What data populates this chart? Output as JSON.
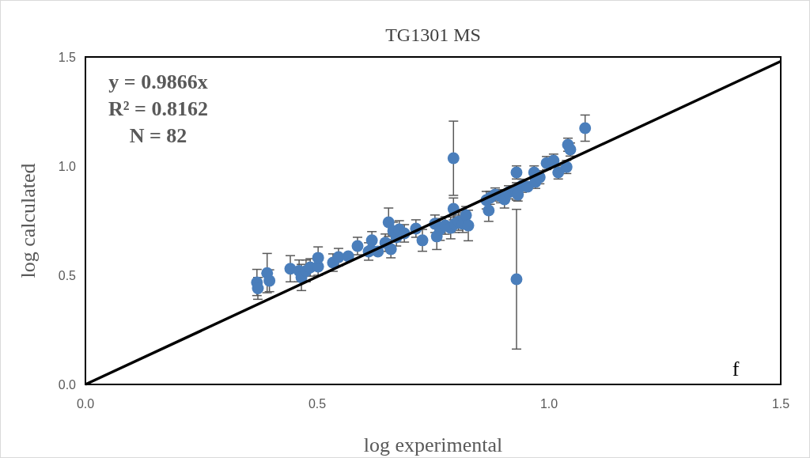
{
  "chart_data": {
    "type": "scatter",
    "title": "TG1301 MS",
    "xlabel": "log experimental",
    "ylabel": "log calculated",
    "annotations": [
      "y = 0.9866x",
      "R² = 0.8162",
      "N = 82",
      "f"
    ],
    "xlim": [
      0,
      1.5
    ],
    "ylim": [
      0,
      1.5
    ],
    "xticks": [
      {
        "value": 0,
        "label": "0.0"
      },
      {
        "value": 0.5,
        "label": "0.5"
      },
      {
        "value": 1,
        "label": "1.0"
      },
      {
        "value": 1.5,
        "label": "1.5"
      }
    ],
    "yticks": [
      {
        "value": 0,
        "label": "0.0"
      },
      {
        "value": 0.5,
        "label": "0.5"
      },
      {
        "value": 1,
        "label": "1.0"
      },
      {
        "value": 1.5,
        "label": "1.5"
      }
    ],
    "grid": false,
    "marker": "circle",
    "series": [
      {
        "color": "#4a7ebb",
        "x": [
          0.37,
          0.372,
          0.392,
          0.397,
          0.442,
          0.461,
          0.466,
          0.476,
          0.485,
          0.502,
          0.502,
          0.534,
          0.546,
          0.567,
          0.587,
          0.611,
          0.616,
          0.618,
          0.631,
          0.647,
          0.654,
          0.659,
          0.664,
          0.671,
          0.677,
          0.688,
          0.713,
          0.727,
          0.754,
          0.758,
          0.765,
          0.776,
          0.788,
          0.794,
          0.794,
          0.797,
          0.805,
          0.814,
          0.821,
          0.826,
          0.865,
          0.87,
          0.873,
          0.884,
          0.896,
          0.904,
          0.913,
          0.93,
          0.93,
          0.93,
          0.933,
          0.942,
          0.954,
          0.968,
          0.971,
          0.98,
          0.995,
          1.01,
          1.02,
          1.038,
          1.041,
          1.046,
          1.078
        ],
        "values": [
          0.467,
          0.44,
          0.51,
          0.475,
          0.53,
          0.52,
          0.49,
          0.52,
          0.536,
          0.54,
          0.58,
          0.558,
          0.583,
          0.587,
          0.634,
          0.609,
          0.616,
          0.66,
          0.609,
          0.649,
          0.743,
          0.62,
          0.703,
          0.674,
          0.71,
          0.692,
          0.714,
          0.66,
          0.736,
          0.678,
          0.71,
          0.728,
          0.717,
          1.036,
          0.804,
          0.736,
          0.746,
          0.736,
          0.775,
          0.728,
          0.844,
          0.797,
          0.855,
          0.87,
          0.862,
          0.848,
          0.88,
          0.971,
          0.884,
          0.482,
          0.87,
          0.91,
          0.906,
          0.971,
          0.928,
          0.949,
          1.014,
          1.025,
          0.971,
          0.996,
          1.098,
          1.076,
          1.174
        ],
        "errors": [
          0.06,
          0.05,
          0.09,
          0.05,
          0.06,
          0.05,
          0.06,
          0.05,
          0.04,
          0.04,
          0.05,
          0.04,
          0.04,
          null,
          0.04,
          0.04,
          null,
          0.04,
          null,
          0.04,
          0.065,
          0.04,
          0.04,
          0.04,
          0.04,
          0.04,
          0.04,
          0.05,
          0.04,
          0.06,
          0.05,
          0.04,
          0.05,
          0.17,
          0.05,
          0.04,
          0.04,
          0.04,
          0.04,
          0.07,
          0.04,
          0.05,
          0.03,
          0.03,
          0.03,
          0.04,
          0.03,
          0.03,
          0.04,
          0.32,
          0.03,
          0.03,
          null,
          0.03,
          0.03,
          0.03,
          0.03,
          0.03,
          0.03,
          0.03,
          0.03,
          0.03,
          0.06
        ]
      },
      {
        "type": "line",
        "marker": "none",
        "color": "#000000",
        "x": [
          0,
          1.5
        ],
        "values": [
          0,
          1.48
        ]
      }
    ]
  }
}
